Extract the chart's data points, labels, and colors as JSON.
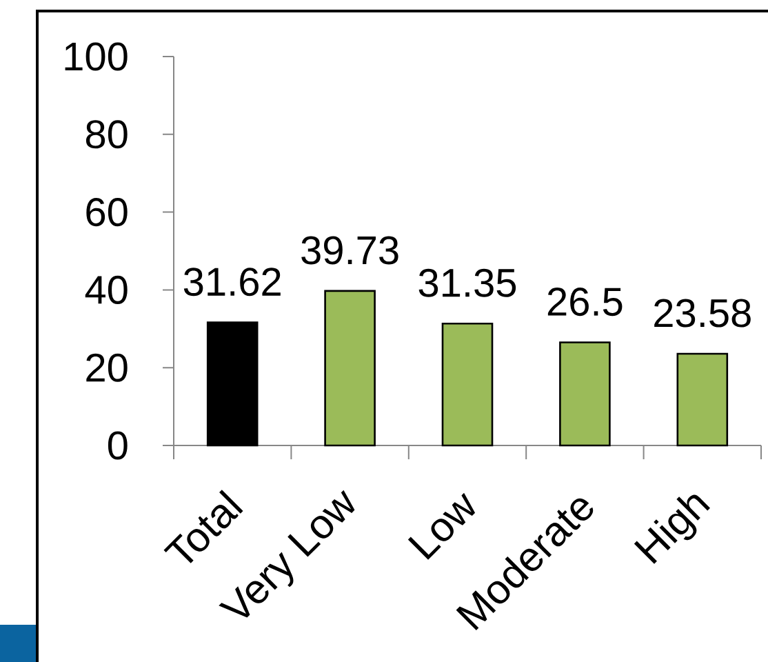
{
  "chart_data": {
    "type": "bar",
    "categories": [
      "Total",
      "Very Low",
      "Low",
      "Moderate",
      "High"
    ],
    "values": [
      31.62,
      39.73,
      31.35,
      26.5,
      23.58
    ],
    "colors": [
      "#000000",
      "#9bbb59",
      "#9bbb59",
      "#9bbb59",
      "#9bbb59"
    ],
    "ylim": [
      0,
      100
    ],
    "yticks": [
      0,
      20,
      40,
      60,
      80,
      100
    ],
    "data_labels": true
  }
}
